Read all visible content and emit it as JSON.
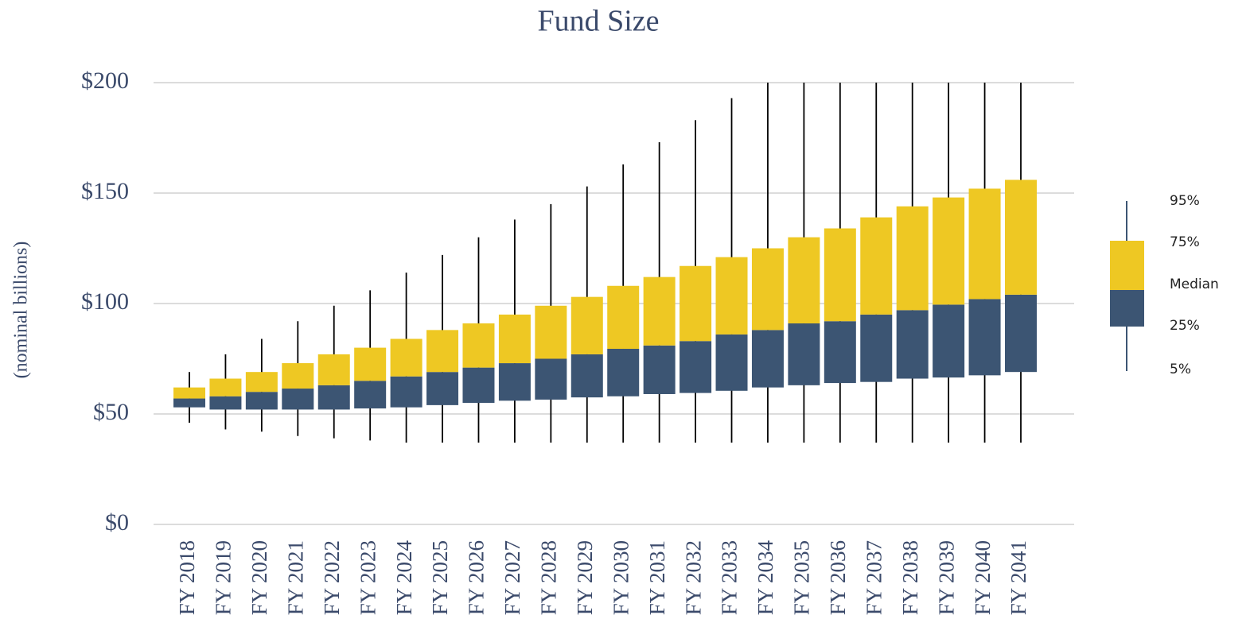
{
  "chart_data": {
    "type": "box",
    "title": "Fund Size",
    "y_label": "(nominal billions)",
    "categories": [
      "FY 2018",
      "FY 2019",
      "FY 2020",
      "FY 2021",
      "FY 2022",
      "FY 2023",
      "FY 2024",
      "FY 2025",
      "FY 2026",
      "FY 2027",
      "FY 2028",
      "FY 2029",
      "FY 2030",
      "FY 2031",
      "FY 2032",
      "FY 2033",
      "FY 2034",
      "FY 2035",
      "FY 2036",
      "FY 2037",
      "FY 2038",
      "FY 2039",
      "FY 2040",
      "FY 2041"
    ],
    "p5": [
      46,
      43,
      42,
      40,
      39,
      38,
      37,
      37,
      37,
      37,
      37,
      37,
      37,
      37,
      37,
      37,
      37,
      37,
      37,
      37,
      37,
      37,
      37,
      37
    ],
    "p25": [
      53,
      52,
      52,
      52,
      52,
      52.5,
      53,
      54,
      55,
      56,
      56.5,
      57.5,
      58,
      59,
      59.5,
      60.5,
      62,
      63,
      64,
      64.5,
      66,
      66.5,
      67.5,
      69
    ],
    "median": [
      57,
      58,
      60,
      61.5,
      63,
      65,
      67,
      69,
      71,
      73,
      75,
      77,
      79.5,
      81,
      83,
      86,
      88,
      91,
      92,
      95,
      97,
      99.5,
      102,
      104
    ],
    "p75": [
      62,
      66,
      69,
      73,
      77,
      80,
      84,
      88,
      91,
      95,
      99,
      103,
      108,
      112,
      117,
      121,
      125,
      130,
      134,
      139,
      144,
      148,
      152,
      156
    ],
    "p95": [
      69,
      77,
      84,
      92,
      99,
      106,
      114,
      122,
      130,
      138,
      145,
      153,
      163,
      173,
      183,
      193,
      200,
      200,
      200,
      200,
      200,
      200,
      200,
      200
    ],
    "upper_color": "#eec823",
    "lower_color": "#3c5573",
    "whisker_color": "#000000",
    "ylim": [
      0,
      200
    ],
    "yticks": [
      {
        "value": 0,
        "label": "$0"
      },
      {
        "value": 50,
        "label": "$50"
      },
      {
        "value": 100,
        "label": "$100"
      },
      {
        "value": 150,
        "label": "$150"
      },
      {
        "value": 200,
        "label": "$200"
      }
    ],
    "grid": true,
    "legend_labels": [
      "95%",
      "75%",
      "Median",
      "25%",
      "5%"
    ]
  }
}
